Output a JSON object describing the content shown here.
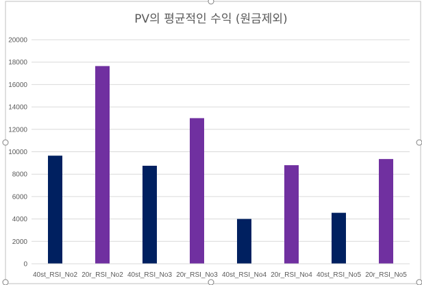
{
  "chart_data": {
    "type": "bar",
    "title": "PV의 평균적인 수익 (원금제외)",
    "xlabel": "",
    "ylabel": "",
    "categories": [
      "40st_RSI_No2",
      "20r_RSI_No2",
      "40st_RSI_No3",
      "20r_RSI_No3",
      "40st_RSI_No4",
      "20r_RSI_No4",
      "40st_RSI_No5",
      "20r_RSI_No5"
    ],
    "values": [
      9650,
      17650,
      8750,
      13000,
      4000,
      8800,
      4550,
      9350
    ],
    "bar_colors": [
      "#002060",
      "#7030a0",
      "#002060",
      "#7030a0",
      "#002060",
      "#7030a0",
      "#002060",
      "#7030a0"
    ],
    "ylim": [
      0,
      20000
    ],
    "yticks": [
      "0",
      "2000",
      "4000",
      "6000",
      "8000",
      "10000",
      "12000",
      "14000",
      "16000",
      "18000",
      "20000"
    ],
    "grid": true,
    "legend": "none"
  },
  "colors": {
    "gridline": "#d9d9d9",
    "frame_border": "#bfbfbf",
    "handle_border": "#7f7f7f"
  }
}
